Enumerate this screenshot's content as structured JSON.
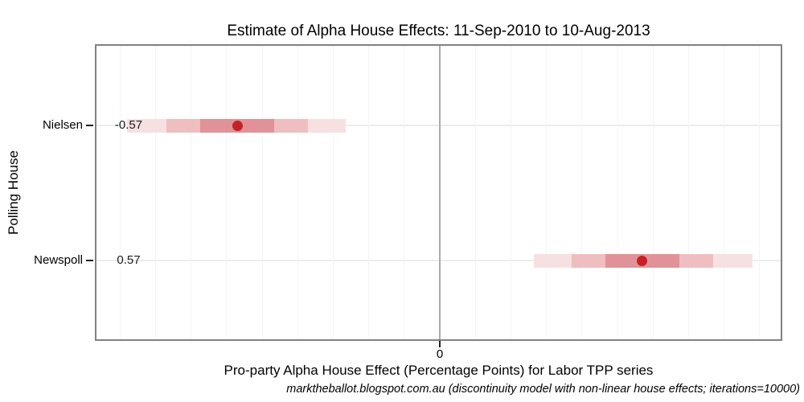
{
  "chart_data": {
    "type": "scatter",
    "title": "Estimate of Alpha House Effects: 11-Sep-2010 to 10-Aug-2013",
    "xlabel": "Pro-party Alpha House Effect (Percentage Points) for Labor TPP series",
    "ylabel": "Polling House",
    "caption": "marktheballot.blogspot.com.au (discontinuity model with non-linear house effects; iterations=10000)",
    "categories": [
      "Nielsen",
      "Newspoll"
    ],
    "series": [
      {
        "name": "Nielsen",
        "estimate": -0.57,
        "estimate_label": "-0.57",
        "intervals": {
          "outer": [
            -0.88,
            -0.265
          ],
          "middle": [
            -0.77,
            -0.37
          ],
          "inner": [
            -0.675,
            -0.465
          ]
        }
      },
      {
        "name": "Newspoll",
        "estimate": 0.57,
        "estimate_label": "0.57",
        "intervals": {
          "outer": [
            0.265,
            0.88
          ],
          "middle": [
            0.37,
            0.77
          ],
          "inner": [
            0.465,
            0.675
          ]
        }
      }
    ],
    "xlim": [
      -0.9706,
      0.9638
    ],
    "x_tick_values": [
      0
    ],
    "x_tick_labels": [
      "0"
    ],
    "minor_grid_step": 0.1,
    "grid": "on",
    "legend": "none",
    "colors": {
      "outer_band": "#F7E0E2",
      "middle_band": "#EFBEC1",
      "inner_band": "#E19298",
      "point": "#C52127",
      "zero_line": "#ABABAB",
      "row_gridline": "#ECECEC",
      "minor_gridline": "#F4F4F4",
      "panel_border": "#828282",
      "tick": "#222222"
    }
  }
}
